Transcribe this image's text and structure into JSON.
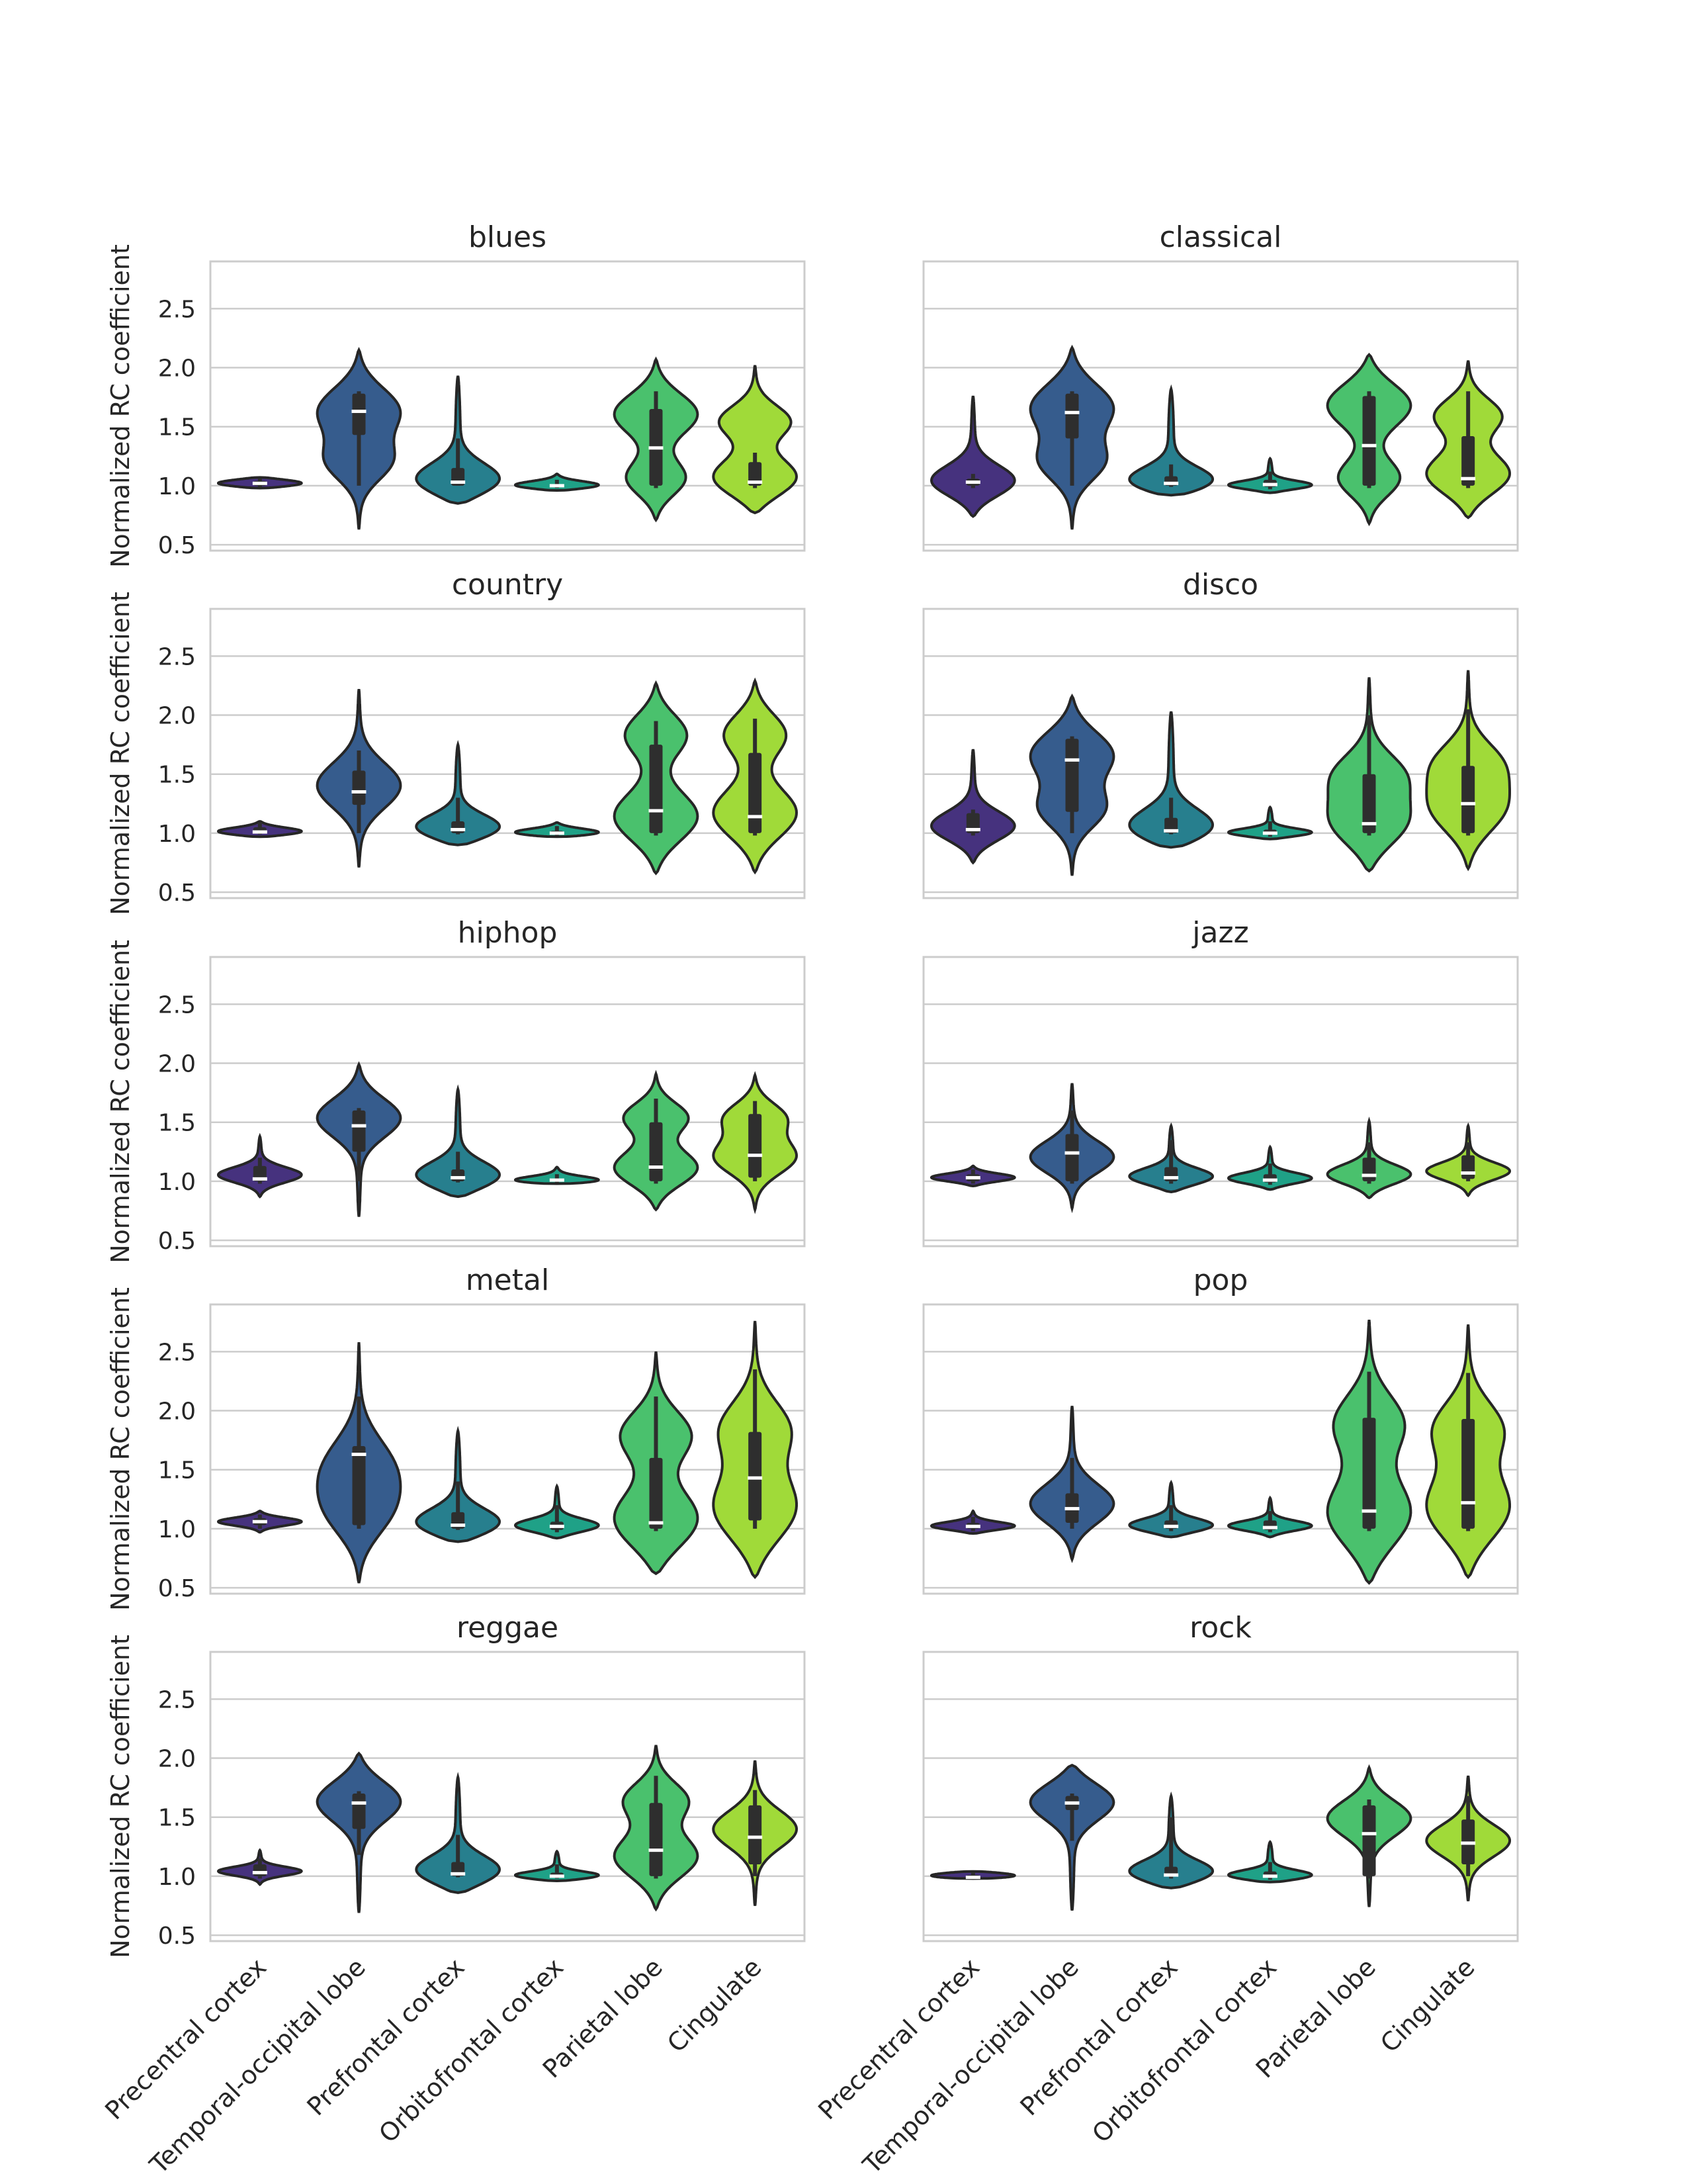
{
  "chart_data": {
    "type": "violin",
    "ylabel": "Normalized RC coefficient",
    "ylim": [
      0.45,
      2.9
    ],
    "yticks": [
      "0.5",
      "1.0",
      "1.5",
      "2.0",
      "2.5"
    ],
    "ytick_values": [
      0.5,
      1.0,
      1.5,
      2.0,
      2.5
    ],
    "grid": true,
    "categories": [
      "Precentral cortex",
      "Temporal-occipital lobe",
      "Prefrontal cortex",
      "Orbitofrontal cortex",
      "Parietal lobe",
      "Cingulate"
    ],
    "colors": [
      "#46327e",
      "#365c8d",
      "#277f8e",
      "#1fa187",
      "#4ac16d",
      "#a0da39"
    ],
    "panels": [
      {
        "title": "blues",
        "violins": [
          {
            "min": 0.98,
            "max": 1.07,
            "median": 1.02,
            "q1": 1.0,
            "q3": 1.04,
            "wlo": 0.99,
            "whi": 1.06,
            "modes": [
              1.02
            ]
          },
          {
            "min": 0.63,
            "max": 2.15,
            "median": 1.63,
            "q1": 1.43,
            "q3": 1.78,
            "wlo": 1.0,
            "whi": 1.8,
            "modes": [
              1.65,
              1.2
            ]
          },
          {
            "min": 0.85,
            "max": 1.93,
            "median": 1.03,
            "q1": 1.0,
            "q3": 1.15,
            "wlo": 1.0,
            "whi": 1.4,
            "modes": [
              1.03
            ]
          },
          {
            "min": 0.96,
            "max": 1.1,
            "median": 1.0,
            "q1": 0.99,
            "q3": 1.01,
            "wlo": 0.98,
            "whi": 1.05,
            "modes": [
              1.0
            ]
          },
          {
            "min": 0.71,
            "max": 2.07,
            "median": 1.32,
            "q1": 1.0,
            "q3": 1.65,
            "wlo": 0.98,
            "whi": 1.8,
            "modes": [
              1.62,
              1.05
            ]
          },
          {
            "min": 0.77,
            "max": 2.02,
            "median": 1.03,
            "q1": 1.0,
            "q3": 1.2,
            "wlo": 0.98,
            "whi": 1.28,
            "modes": [
              1.05,
              1.55
            ]
          }
        ]
      },
      {
        "title": "classical",
        "violins": [
          {
            "min": 0.74,
            "max": 1.76,
            "median": 1.03,
            "q1": 1.0,
            "q3": 1.06,
            "wlo": 0.98,
            "whi": 1.1,
            "modes": [
              1.03
            ]
          },
          {
            "min": 0.63,
            "max": 2.17,
            "median": 1.62,
            "q1": 1.4,
            "q3": 1.78,
            "wlo": 1.0,
            "whi": 1.8,
            "modes": [
              1.68,
              1.2
            ]
          },
          {
            "min": 0.92,
            "max": 1.82,
            "median": 1.02,
            "q1": 1.0,
            "q3": 1.08,
            "wlo": 0.99,
            "whi": 1.18,
            "modes": [
              1.02
            ]
          },
          {
            "min": 0.94,
            "max": 1.23,
            "median": 1.01,
            "q1": 0.99,
            "q3": 1.05,
            "wlo": 0.97,
            "whi": 1.12,
            "modes": [
              1.0
            ]
          },
          {
            "min": 0.68,
            "max": 2.11,
            "median": 1.34,
            "q1": 1.0,
            "q3": 1.76,
            "wlo": 0.98,
            "whi": 1.8,
            "modes": [
              1.7,
              1.05
            ]
          },
          {
            "min": 0.73,
            "max": 2.06,
            "median": 1.06,
            "q1": 1.0,
            "q3": 1.42,
            "wlo": 0.98,
            "whi": 1.8,
            "modes": [
              1.08,
              1.6
            ]
          }
        ]
      },
      {
        "title": "country",
        "violins": [
          {
            "min": 0.97,
            "max": 1.1,
            "median": 1.01,
            "q1": 1.0,
            "q3": 1.05,
            "wlo": 0.99,
            "whi": 1.09,
            "modes": [
              1.01
            ]
          },
          {
            "min": 0.71,
            "max": 2.22,
            "median": 1.35,
            "q1": 1.24,
            "q3": 1.53,
            "wlo": 1.0,
            "whi": 1.7,
            "modes": [
              1.4
            ]
          },
          {
            "min": 0.9,
            "max": 1.75,
            "median": 1.03,
            "q1": 1.0,
            "q3": 1.1,
            "wlo": 0.99,
            "whi": 1.3,
            "modes": [
              1.03
            ]
          },
          {
            "min": 0.97,
            "max": 1.09,
            "median": 1.0,
            "q1": 0.99,
            "q3": 1.02,
            "wlo": 0.98,
            "whi": 1.06,
            "modes": [
              1.0
            ]
          },
          {
            "min": 0.66,
            "max": 2.27,
            "median": 1.19,
            "q1": 1.0,
            "q3": 1.75,
            "wlo": 0.98,
            "whi": 1.95,
            "modes": [
              1.12,
              1.85
            ]
          },
          {
            "min": 0.67,
            "max": 2.29,
            "median": 1.14,
            "q1": 1.0,
            "q3": 1.68,
            "wlo": 0.98,
            "whi": 1.97,
            "modes": [
              1.15,
              1.85
            ]
          }
        ]
      },
      {
        "title": "disco",
        "violins": [
          {
            "min": 0.75,
            "max": 1.71,
            "median": 1.03,
            "q1": 1.0,
            "q3": 1.17,
            "wlo": 0.98,
            "whi": 1.2,
            "modes": [
              1.05
            ]
          },
          {
            "min": 0.64,
            "max": 2.16,
            "median": 1.62,
            "q1": 1.18,
            "q3": 1.8,
            "wlo": 1.0,
            "whi": 1.82,
            "modes": [
              1.68,
              1.2
            ]
          },
          {
            "min": 0.88,
            "max": 2.03,
            "median": 1.02,
            "q1": 1.0,
            "q3": 1.13,
            "wlo": 0.99,
            "whi": 1.3,
            "modes": [
              1.03
            ]
          },
          {
            "min": 0.95,
            "max": 1.22,
            "median": 1.0,
            "q1": 0.99,
            "q3": 1.03,
            "wlo": 0.97,
            "whi": 1.1,
            "modes": [
              1.0
            ]
          },
          {
            "min": 0.68,
            "max": 2.32,
            "median": 1.08,
            "q1": 1.0,
            "q3": 1.5,
            "wlo": 0.98,
            "whi": 2.0,
            "modes": [
              1.08,
              1.5
            ]
          },
          {
            "min": 0.7,
            "max": 2.38,
            "median": 1.25,
            "q1": 1.0,
            "q3": 1.57,
            "wlo": 0.98,
            "whi": 2.05,
            "modes": [
              1.2,
              1.6
            ]
          }
        ]
      },
      {
        "title": "hiphop",
        "violins": [
          {
            "min": 0.87,
            "max": 1.38,
            "median": 1.02,
            "q1": 1.0,
            "q3": 1.13,
            "wlo": 0.98,
            "whi": 1.2,
            "modes": [
              1.05
            ]
          },
          {
            "min": 0.7,
            "max": 1.99,
            "median": 1.47,
            "q1": 1.25,
            "q3": 1.6,
            "wlo": 1.0,
            "whi": 1.62,
            "modes": [
              1.55
            ]
          },
          {
            "min": 0.87,
            "max": 1.78,
            "median": 1.03,
            "q1": 1.0,
            "q3": 1.1,
            "wlo": 0.99,
            "whi": 1.25,
            "modes": [
              1.03
            ]
          },
          {
            "min": 0.98,
            "max": 1.12,
            "median": 1.01,
            "q1": 1.0,
            "q3": 1.02,
            "wlo": 0.99,
            "whi": 1.06,
            "modes": [
              1.0
            ]
          },
          {
            "min": 0.76,
            "max": 1.91,
            "median": 1.12,
            "q1": 1.0,
            "q3": 1.5,
            "wlo": 0.98,
            "whi": 1.7,
            "modes": [
              1.1,
              1.55
            ]
          },
          {
            "min": 0.76,
            "max": 1.9,
            "median": 1.22,
            "q1": 1.03,
            "q3": 1.57,
            "wlo": 1.0,
            "whi": 1.68,
            "modes": [
              1.2,
              1.55
            ]
          }
        ]
      },
      {
        "title": "jazz",
        "violins": [
          {
            "min": 0.96,
            "max": 1.13,
            "median": 1.03,
            "q1": 1.0,
            "q3": 1.06,
            "wlo": 0.98,
            "whi": 1.1,
            "modes": [
              1.03
            ]
          },
          {
            "min": 0.77,
            "max": 1.83,
            "median": 1.24,
            "q1": 1.0,
            "q3": 1.4,
            "wlo": 0.98,
            "whi": 1.6,
            "modes": [
              1.2
            ]
          },
          {
            "min": 0.91,
            "max": 1.47,
            "median": 1.03,
            "q1": 1.0,
            "q3": 1.12,
            "wlo": 0.98,
            "whi": 1.35,
            "modes": [
              1.03
            ]
          },
          {
            "min": 0.93,
            "max": 1.29,
            "median": 1.01,
            "q1": 0.99,
            "q3": 1.06,
            "wlo": 0.97,
            "whi": 1.15,
            "modes": [
              1.02
            ]
          },
          {
            "min": 0.86,
            "max": 1.51,
            "median": 1.05,
            "q1": 1.0,
            "q3": 1.2,
            "wlo": 0.98,
            "whi": 1.33,
            "modes": [
              1.05
            ]
          },
          {
            "min": 0.88,
            "max": 1.47,
            "median": 1.07,
            "q1": 1.02,
            "q3": 1.22,
            "wlo": 1.0,
            "whi": 1.33,
            "modes": [
              1.08
            ]
          }
        ]
      },
      {
        "title": "metal",
        "violins": [
          {
            "min": 0.97,
            "max": 1.15,
            "median": 1.06,
            "q1": 1.03,
            "q3": 1.09,
            "wlo": 1.0,
            "whi": 1.12,
            "modes": [
              1.06
            ]
          },
          {
            "min": 0.54,
            "max": 2.58,
            "median": 1.63,
            "q1": 1.03,
            "q3": 1.7,
            "wlo": 1.0,
            "whi": 2.12,
            "modes": [
              1.5,
              1.1
            ]
          },
          {
            "min": 0.89,
            "max": 1.83,
            "median": 1.03,
            "q1": 1.0,
            "q3": 1.14,
            "wlo": 0.99,
            "whi": 1.4,
            "modes": [
              1.03
            ]
          },
          {
            "min": 0.92,
            "max": 1.36,
            "median": 1.02,
            "q1": 0.99,
            "q3": 1.06,
            "wlo": 0.97,
            "whi": 1.2,
            "modes": [
              1.02
            ]
          },
          {
            "min": 0.62,
            "max": 2.5,
            "median": 1.05,
            "q1": 1.0,
            "q3": 1.6,
            "wlo": 0.98,
            "whi": 2.12,
            "modes": [
              1.05,
              1.8
            ]
          },
          {
            "min": 0.59,
            "max": 2.76,
            "median": 1.43,
            "q1": 1.07,
            "q3": 1.82,
            "wlo": 1.0,
            "whi": 2.35,
            "modes": [
              1.15,
              1.85
            ]
          }
        ]
      },
      {
        "title": "pop",
        "violins": [
          {
            "min": 0.96,
            "max": 1.15,
            "median": 1.02,
            "q1": 1.0,
            "q3": 1.05,
            "wlo": 0.98,
            "whi": 1.1,
            "modes": [
              1.02
            ]
          },
          {
            "min": 0.74,
            "max": 2.04,
            "median": 1.17,
            "q1": 1.05,
            "q3": 1.3,
            "wlo": 1.0,
            "whi": 1.6,
            "modes": [
              1.2
            ]
          },
          {
            "min": 0.93,
            "max": 1.39,
            "median": 1.02,
            "q1": 1.0,
            "q3": 1.07,
            "wlo": 0.98,
            "whi": 1.2,
            "modes": [
              1.02
            ]
          },
          {
            "min": 0.93,
            "max": 1.26,
            "median": 1.01,
            "q1": 0.99,
            "q3": 1.07,
            "wlo": 0.97,
            "whi": 1.15,
            "modes": [
              1.02
            ]
          },
          {
            "min": 0.54,
            "max": 2.77,
            "median": 1.15,
            "q1": 1.0,
            "q3": 1.94,
            "wlo": 0.98,
            "whi": 2.33,
            "modes": [
              1.1,
              1.9
            ]
          },
          {
            "min": 0.59,
            "max": 2.73,
            "median": 1.22,
            "q1": 1.0,
            "q3": 1.93,
            "wlo": 0.98,
            "whi": 2.32,
            "modes": [
              1.15,
              1.85
            ]
          }
        ]
      },
      {
        "title": "reggae",
        "violins": [
          {
            "min": 0.93,
            "max": 1.22,
            "median": 1.03,
            "q1": 1.0,
            "q3": 1.1,
            "wlo": 0.98,
            "whi": 1.15,
            "modes": [
              1.04
            ]
          },
          {
            "min": 0.69,
            "max": 2.04,
            "median": 1.62,
            "q1": 1.4,
            "q3": 1.7,
            "wlo": 1.18,
            "whi": 1.72,
            "modes": [
              1.65
            ]
          },
          {
            "min": 0.86,
            "max": 1.84,
            "median": 1.02,
            "q1": 1.0,
            "q3": 1.12,
            "wlo": 0.99,
            "whi": 1.35,
            "modes": [
              1.03
            ]
          },
          {
            "min": 0.96,
            "max": 1.21,
            "median": 1.0,
            "q1": 0.99,
            "q3": 1.03,
            "wlo": 0.98,
            "whi": 1.1,
            "modes": [
              1.0
            ]
          },
          {
            "min": 0.72,
            "max": 2.11,
            "median": 1.22,
            "q1": 1.0,
            "q3": 1.62,
            "wlo": 0.98,
            "whi": 1.85,
            "modes": [
              1.15,
              1.65
            ]
          },
          {
            "min": 0.75,
            "max": 1.98,
            "median": 1.33,
            "q1": 1.1,
            "q3": 1.6,
            "wlo": 1.0,
            "whi": 1.73,
            "modes": [
              1.4
            ]
          }
        ]
      },
      {
        "title": "rock",
        "violins": [
          {
            "min": 0.98,
            "max": 1.04,
            "median": 0.99,
            "q1": 0.99,
            "q3": 1.01,
            "wlo": 0.98,
            "whi": 1.03,
            "modes": [
              1.0
            ]
          },
          {
            "min": 0.71,
            "max": 1.94,
            "median": 1.62,
            "q1": 1.56,
            "q3": 1.68,
            "wlo": 1.3,
            "whi": 1.7,
            "modes": [
              1.65
            ]
          },
          {
            "min": 0.9,
            "max": 1.68,
            "median": 1.01,
            "q1": 1.0,
            "q3": 1.08,
            "wlo": 0.98,
            "whi": 1.5,
            "modes": [
              1.02
            ]
          },
          {
            "min": 0.95,
            "max": 1.29,
            "median": 1.0,
            "q1": 0.99,
            "q3": 1.04,
            "wlo": 0.97,
            "whi": 1.12,
            "modes": [
              1.0
            ]
          },
          {
            "min": 0.74,
            "max": 1.92,
            "median": 1.36,
            "q1": 1.0,
            "q3": 1.6,
            "wlo": 0.98,
            "whi": 1.65,
            "modes": [
              1.5
            ]
          },
          {
            "min": 0.79,
            "max": 1.85,
            "median": 1.28,
            "q1": 1.1,
            "q3": 1.48,
            "wlo": 1.0,
            "whi": 1.68,
            "modes": [
              1.3
            ]
          }
        ]
      }
    ]
  }
}
